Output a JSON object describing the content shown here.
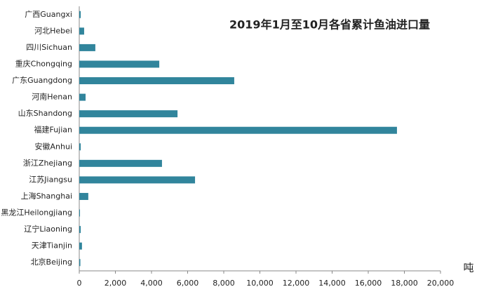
{
  "chart_data": {
    "type": "bar",
    "orientation": "horizontal",
    "title": "2019年1月至10月各省累计鱼油进口量",
    "x_unit": "吨",
    "categories": [
      "广西Guangxi",
      "河北Hebei",
      "四川Sichuan",
      "重庆Chongqing",
      "广东Guangdong",
      "河南Henan",
      "山东Shandong",
      "福建Fujian",
      "安徽Anhui",
      "浙江Zhejiang",
      "江苏Jiangsu",
      "上海Shanghai",
      "黑龙江Heilongjiang",
      "辽宁Liaoning",
      "天津Tianjin",
      "北京Beijing"
    ],
    "values": [
      80,
      270,
      890,
      4430,
      8580,
      350,
      5440,
      17590,
      80,
      4580,
      6410,
      500,
      40,
      80,
      150,
      60
    ],
    "color": "#31859c",
    "xlim": [
      0,
      20000
    ],
    "xticks": [
      0,
      {
        "value": 2000,
        "label": "2,000"
      },
      {
        "value": 4000,
        "label": "4,000"
      },
      {
        "value": 6000,
        "label": "6,000"
      },
      {
        "value": 8000,
        "label": "8,000"
      },
      {
        "value": 10000,
        "label": "10,000"
      },
      {
        "value": 12000,
        "label": "12,000"
      },
      {
        "value": 14000,
        "label": "14,000"
      },
      {
        "value": 16000,
        "label": "16,000"
      },
      {
        "value": 18000,
        "label": "18,000"
      },
      {
        "value": 20000,
        "label": "20,000"
      }
    ],
    "grid": false
  }
}
